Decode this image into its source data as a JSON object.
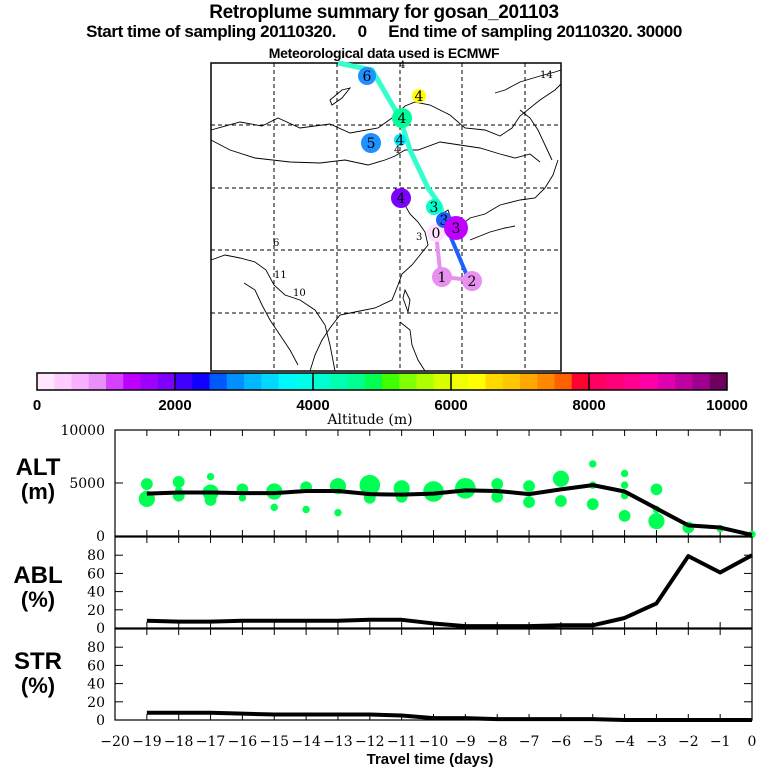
{
  "header": {
    "title": "Retroplume summary for gosan_201103",
    "sampling_line": "Start time of sampling 20110320.     0     End time of sampling 20110320. 30000",
    "met_line": "Meteorological data used is ECMWF"
  },
  "map": {
    "description": "East Asia map with retroplume trajectory clusters, labelled by days back",
    "trajectory_labels": [
      {
        "label": "6",
        "color": "#1e90ff"
      },
      {
        "label": "4",
        "color": "#ffff00"
      },
      {
        "label": "4",
        "color": "#00ff99"
      },
      {
        "label": "4",
        "color": "#00e5ff"
      },
      {
        "label": "5",
        "color": "#1e90ff"
      },
      {
        "label": "4",
        "color": "#7b00ff"
      },
      {
        "label": "3",
        "color": "#00ffcc"
      },
      {
        "label": "0",
        "color": "#ffe0ff"
      },
      {
        "label": "3",
        "color": "#1e60ff"
      },
      {
        "label": "3",
        "color": "#c000ff"
      },
      {
        "label": "1",
        "color": "#e890f0"
      },
      {
        "label": "2",
        "color": "#e890f0"
      }
    ],
    "small_labels": [
      "14",
      "6",
      "11",
      "10",
      "3",
      "4",
      "4"
    ]
  },
  "colorbar": {
    "ticks": [
      "0",
      "2000",
      "4000",
      "6000",
      "8000",
      "10000"
    ],
    "label": "Altitude (m)",
    "colors": [
      "#ffe8ff",
      "#ffccff",
      "#f8b0ff",
      "#e890f8",
      "#d840ff",
      "#c000ff",
      "#a000ff",
      "#8000ff",
      "#4000ff",
      "#1000ff",
      "#0058ff",
      "#0090ff",
      "#00b8ff",
      "#00d8ff",
      "#00f8ff",
      "#00ffe8",
      "#00ffd0",
      "#00ffb0",
      "#00ff90",
      "#00ff50",
      "#40ff00",
      "#80ff00",
      "#b0ff00",
      "#d8ff00",
      "#f0ff00",
      "#ffff00",
      "#ffd800",
      "#ffc800",
      "#ffa800",
      "#ff8800",
      "#ff6000",
      "#ff0030",
      "#ff0060",
      "#ff0078",
      "#ff0090",
      "#ff00a8",
      "#e000b0",
      "#c000a0",
      "#a00090",
      "#700060"
    ]
  },
  "chart_data": [
    {
      "type": "line",
      "panel": "ALT",
      "ylabel": "ALT\n(m)",
      "ylabel_line1": "ALT",
      "ylabel_line2": "(m)",
      "ylim": [
        0,
        10000
      ],
      "yticks": [
        "10000",
        "5000",
        "0"
      ],
      "ytick_values": [
        10000,
        5000,
        0
      ],
      "xlim": [
        -20,
        0
      ],
      "x": [
        -19,
        -18,
        -17,
        -16,
        -15,
        -14,
        -13,
        -12,
        -11,
        -10,
        -9,
        -8,
        -7,
        -6,
        -5,
        -4,
        -3,
        -2,
        -1,
        0
      ],
      "series": [
        {
          "name": "mean altitude",
          "values": [
            4000,
            4100,
            4100,
            4050,
            4050,
            4250,
            4250,
            3950,
            3900,
            4000,
            4300,
            4250,
            3950,
            4400,
            4800,
            4200,
            2600,
            1000,
            800,
            100
          ]
        }
      ],
      "scatter_points": [
        {
          "x": -19,
          "y": 4900,
          "size": 2
        },
        {
          "x": -19,
          "y": 3500,
          "size": 3
        },
        {
          "x": -18,
          "y": 5100,
          "size": 2
        },
        {
          "x": -18,
          "y": 4300,
          "size": 1
        },
        {
          "x": -18,
          "y": 3800,
          "size": 2
        },
        {
          "x": -17,
          "y": 5600,
          "size": 1
        },
        {
          "x": -17,
          "y": 4100,
          "size": 3
        },
        {
          "x": -17,
          "y": 3400,
          "size": 2
        },
        {
          "x": -16,
          "y": 4400,
          "size": 2
        },
        {
          "x": -16,
          "y": 3600,
          "size": 1
        },
        {
          "x": -15,
          "y": 4200,
          "size": 3
        },
        {
          "x": -15,
          "y": 2700,
          "size": 1
        },
        {
          "x": -14,
          "y": 4600,
          "size": 2
        },
        {
          "x": -14,
          "y": 2500,
          "size": 1
        },
        {
          "x": -13,
          "y": 4700,
          "size": 3
        },
        {
          "x": -13,
          "y": 2200,
          "size": 1
        },
        {
          "x": -12,
          "y": 4800,
          "size": 4
        },
        {
          "x": -12,
          "y": 3600,
          "size": 2
        },
        {
          "x": -11,
          "y": 4500,
          "size": 3
        },
        {
          "x": -11,
          "y": 3700,
          "size": 2
        },
        {
          "x": -10,
          "y": 4200,
          "size": 4
        },
        {
          "x": -9,
          "y": 4500,
          "size": 4
        },
        {
          "x": -8,
          "y": 4900,
          "size": 2
        },
        {
          "x": -8,
          "y": 3700,
          "size": 2
        },
        {
          "x": -7,
          "y": 4700,
          "size": 2
        },
        {
          "x": -7,
          "y": 3200,
          "size": 2
        },
        {
          "x": -6,
          "y": 5400,
          "size": 3
        },
        {
          "x": -6,
          "y": 3300,
          "size": 2
        },
        {
          "x": -5,
          "y": 6800,
          "size": 1
        },
        {
          "x": -5,
          "y": 4800,
          "size": 1
        },
        {
          "x": -5,
          "y": 3000,
          "size": 2
        },
        {
          "x": -4,
          "y": 5900,
          "size": 1
        },
        {
          "x": -4,
          "y": 4800,
          "size": 1
        },
        {
          "x": -4,
          "y": 3800,
          "size": 1
        },
        {
          "x": -4,
          "y": 1900,
          "size": 2
        },
        {
          "x": -3,
          "y": 4400,
          "size": 2
        },
        {
          "x": -3,
          "y": 2500,
          "size": 1
        },
        {
          "x": -3,
          "y": 1400,
          "size": 3
        },
        {
          "x": -2,
          "y": 800,
          "size": 2
        },
        {
          "x": -1,
          "y": 700,
          "size": 1
        },
        {
          "x": 0,
          "y": 150,
          "size": 1
        }
      ],
      "point_color": "#00ff55"
    },
    {
      "type": "line",
      "panel": "ABL",
      "ylabel_line1": "ABL",
      "ylabel_line2": "(%)",
      "ylim": [
        0,
        100
      ],
      "yticks": [
        "80",
        "60",
        "40",
        "20",
        "0"
      ],
      "ytick_values": [
        80,
        60,
        40,
        20,
        0
      ],
      "xlim": [
        -20,
        0
      ],
      "x": [
        -19,
        -18,
        -17,
        -16,
        -15,
        -14,
        -13,
        -12,
        -11,
        -10,
        -9,
        -8,
        -7,
        -6,
        -5,
        -4,
        -3,
        -2,
        -1,
        0
      ],
      "series": [
        {
          "name": "ABL fraction",
          "values": [
            8,
            7,
            7,
            8,
            8,
            8,
            8,
            9,
            9,
            5,
            2,
            2,
            2,
            3,
            3,
            11,
            27,
            79,
            61,
            80
          ]
        }
      ]
    },
    {
      "type": "line",
      "panel": "STR",
      "ylabel_line1": "STR",
      "ylabel_line2": "(%)",
      "ylim": [
        0,
        100
      ],
      "yticks": [
        "80",
        "60",
        "40",
        "20",
        "0"
      ],
      "ytick_values": [
        80,
        60,
        40,
        20,
        0
      ],
      "xlim": [
        -20,
        0
      ],
      "xlabel": "Travel time (days)",
      "xticks": [
        "−20",
        "−19",
        "−18",
        "−17",
        "−16",
        "−15",
        "−14",
        "−13",
        "−12",
        "−11",
        "−10",
        "−9",
        "−8",
        "−7",
        "−6",
        "−5",
        "−4",
        "−3",
        "−2",
        "−1",
        "0"
      ],
      "x": [
        -19,
        -18,
        -17,
        -16,
        -15,
        -14,
        -13,
        -12,
        -11,
        -10,
        -9,
        -8,
        -7,
        -6,
        -5,
        -4,
        -3,
        -2,
        -1,
        0
      ],
      "series": [
        {
          "name": "stratospheric fraction",
          "values": [
            8,
            8,
            8,
            7,
            6,
            6,
            6,
            6,
            5,
            2,
            2,
            1,
            1,
            1,
            1,
            0,
            0,
            0,
            0,
            0
          ]
        }
      ]
    }
  ]
}
